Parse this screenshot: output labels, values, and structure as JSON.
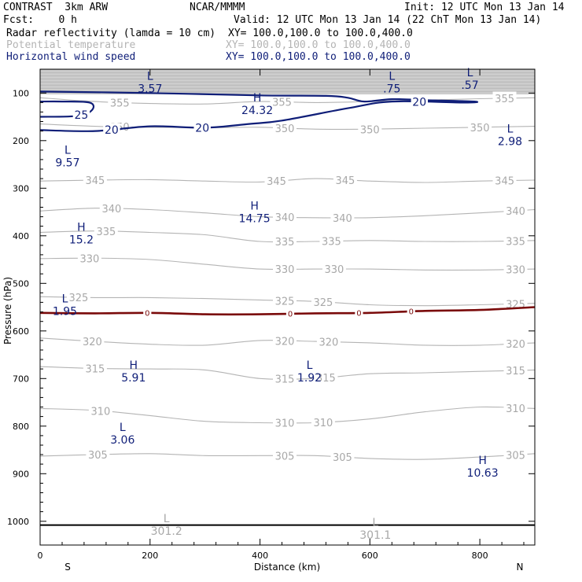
{
  "header": {
    "title": "CONTRAST  3km ARW",
    "org": "NCAR/MMMM",
    "init": "Init: 12 UTC Mon 13 Jan 14",
    "fcst": "Fcst:    0 h",
    "valid": "Valid: 12 UTC Mon 13 Jan 14 (22 ChT Mon 13 Jan 14)",
    "fields": [
      {
        "name": "Radar reflectivity (lamda = 10 cm)",
        "xy": "XY= 100.0,100.0 to 100.0,400.0",
        "color": "#000000"
      },
      {
        "name": "Potential temperature",
        "xy": "XY= 100.0,100.0 to 100.0,400.0",
        "color": "#b4b4b4"
      },
      {
        "name": "Horizontal wind speed",
        "xy": "XY= 100.0,100.0 to 100.0,400.0",
        "color": "#0f1e78"
      }
    ]
  },
  "chart_data": {
    "type": "line",
    "xlabel": "Distance (km)",
    "ylabel": "Pressure (hPa)",
    "xlim": [
      0,
      900
    ],
    "ylim": [
      1050,
      50
    ],
    "x_ticks": [
      0,
      200,
      400,
      600,
      800
    ],
    "y_ticks": [
      100,
      200,
      300,
      400,
      500,
      600,
      700,
      800,
      900,
      1000
    ],
    "x_end_labels": {
      "left": "S",
      "right": "N"
    },
    "series": [
      {
        "name": "Potential temperature",
        "color": "#b4b4b4",
        "contours": [
          {
            "label": "355",
            "points": [
              [
                0,
                110
              ],
              [
                100,
                118
              ],
              [
                200,
                122
              ],
              [
                300,
                123
              ],
              [
                400,
                118
              ],
              [
                500,
                120
              ],
              [
                600,
                118
              ],
              [
                700,
                115
              ],
              [
                800,
                112
              ],
              [
                900,
                110
              ]
            ],
            "label_x": [
              145,
              440,
              845
            ]
          },
          {
            "label": "350",
            "points": [
              [
                0,
                165
              ],
              [
                100,
                170
              ],
              [
                200,
                172
              ],
              [
                300,
                173
              ],
              [
                400,
                172
              ],
              [
                500,
                176
              ],
              [
                600,
                176
              ],
              [
                700,
                174
              ],
              [
                800,
                172
              ],
              [
                900,
                170
              ]
            ],
            "label_x": [
              145,
              445,
              600,
              800
            ]
          },
          {
            "label": "345",
            "points": [
              [
                0,
                285
              ],
              [
                100,
                283
              ],
              [
                200,
                282
              ],
              [
                300,
                285
              ],
              [
                400,
                287
              ],
              [
                500,
                280
              ],
              [
                600,
                285
              ],
              [
                700,
                288
              ],
              [
                800,
                285
              ],
              [
                900,
                283
              ]
            ],
            "label_x": [
              100,
              430,
              555,
              845
            ]
          },
          {
            "label": "340",
            "points": [
              [
                0,
                348
              ],
              [
                100,
                342
              ],
              [
                200,
                345
              ],
              [
                300,
                352
              ],
              [
                400,
                360
              ],
              [
                500,
                362
              ],
              [
                600,
                362
              ],
              [
                700,
                358
              ],
              [
                800,
                352
              ],
              [
                900,
                345
              ]
            ],
            "label_x": [
              130,
              445,
              550,
              865
            ]
          },
          {
            "label": "335",
            "points": [
              [
                0,
                393
              ],
              [
                100,
                390
              ],
              [
                200,
                393
              ],
              [
                300,
                398
              ],
              [
                400,
                412
              ],
              [
                500,
                412
              ],
              [
                600,
                410
              ],
              [
                700,
                412
              ],
              [
                800,
                412
              ],
              [
                900,
                410
              ]
            ],
            "label_x": [
              120,
              445,
              530,
              865
            ]
          },
          {
            "label": "330",
            "points": [
              [
                0,
                448
              ],
              [
                100,
                447
              ],
              [
                200,
                450
              ],
              [
                300,
                460
              ],
              [
                400,
                470
              ],
              [
                500,
                470
              ],
              [
                600,
                470
              ],
              [
                700,
                472
              ],
              [
                800,
                472
              ],
              [
                900,
                470
              ]
            ],
            "label_x": [
              90,
              445,
              535,
              865
            ]
          },
          {
            "label": "325",
            "points": [
              [
                0,
                528
              ],
              [
                100,
                530
              ],
              [
                200,
                530
              ],
              [
                300,
                532
              ],
              [
                400,
                535
              ],
              [
                500,
                538
              ],
              [
                600,
                545
              ],
              [
                700,
                547
              ],
              [
                800,
                545
              ],
              [
                900,
                542
              ]
            ],
            "label_x": [
              70,
              445,
              515,
              865
            ]
          },
          {
            "label": "320",
            "points": [
              [
                0,
                615
              ],
              [
                100,
                622
              ],
              [
                200,
                628
              ],
              [
                300,
                630
              ],
              [
                400,
                620
              ],
              [
                500,
                622
              ],
              [
                600,
                625
              ],
              [
                700,
                630
              ],
              [
                800,
                630
              ],
              [
                900,
                625
              ]
            ],
            "label_x": [
              95,
              445,
              525,
              865
            ]
          },
          {
            "label": "315",
            "points": [
              [
                0,
                675
              ],
              [
                100,
                679
              ],
              [
                200,
                680
              ],
              [
                300,
                682
              ],
              [
                400,
                700
              ],
              [
                500,
                700
              ],
              [
                600,
                690
              ],
              [
                700,
                688
              ],
              [
                800,
                685
              ],
              [
                900,
                682
              ]
            ],
            "label_x": [
              100,
              445,
              520,
              865
            ]
          },
          {
            "label": "310",
            "points": [
              [
                0,
                763
              ],
              [
                100,
                767
              ],
              [
                200,
                778
              ],
              [
                300,
                790
              ],
              [
                400,
                793
              ],
              [
                500,
                793
              ],
              [
                600,
                785
              ],
              [
                700,
                770
              ],
              [
                800,
                760
              ],
              [
                900,
                763
              ]
            ],
            "label_x": [
              110,
              445,
              515,
              865
            ]
          },
          {
            "label": "305",
            "points": [
              [
                0,
                863
              ],
              [
                100,
                860
              ],
              [
                200,
                858
              ],
              [
                300,
                862
              ],
              [
                400,
                862
              ],
              [
                500,
                862
              ],
              [
                600,
                868
              ],
              [
                700,
                870
              ],
              [
                800,
                865
              ],
              [
                900,
                858
              ]
            ],
            "label_x": [
              105,
              445,
              550,
              865
            ]
          }
        ]
      },
      {
        "name": "Horizontal wind speed",
        "color": "#0f1e78",
        "contours": [
          {
            "label": "25",
            "points": [
              [
                0,
                150
              ],
              [
                70,
                148
              ],
              [
                95,
                135
              ],
              [
                90,
                120
              ],
              [
                40,
                118
              ],
              [
                0,
                118
              ]
            ],
            "label_x": [
              75
            ]
          },
          {
            "label": "20",
            "points": [
              [
                0,
                178
              ],
              [
                100,
                180
              ],
              [
                200,
                170
              ],
              [
                300,
                173
              ],
              [
                380,
                165
              ],
              [
                440,
                158
              ],
              [
                560,
                132
              ],
              [
                640,
                118
              ],
              [
                770,
                120
              ],
              [
                790,
                118
              ],
              [
                700,
                115
              ],
              [
                640,
                113
              ],
              [
                590,
                118
              ],
              [
                560,
                110
              ],
              [
                520,
                106
              ],
              [
                400,
                105
              ],
              [
                200,
                100
              ],
              [
                0,
                97
              ]
            ],
            "label_x": [
              130,
              295,
              690
            ]
          }
        ]
      },
      {
        "name": "Radar reflectivity (lamda = 10 cm)",
        "color": "#7a0a0a",
        "contours": [
          {
            "label": "0",
            "points": [
              [
                0,
                562
              ],
              [
                100,
                563
              ],
              [
                200,
                562
              ],
              [
                300,
                565
              ],
              [
                400,
                565
              ],
              [
                500,
                563
              ],
              [
                600,
                562
              ],
              [
                700,
                558
              ],
              [
                800,
                556
              ],
              [
                900,
                550
              ]
            ],
            "label_x": [
              195,
              455,
              580,
              675
            ]
          }
        ]
      }
    ],
    "extrema": [
      {
        "type": "L",
        "value": "3.57",
        "x": 200,
        "p": 72,
        "color": "#0f1e78"
      },
      {
        "type": "L",
        "value": ".75",
        "x": 640,
        "p": 72,
        "color": "#0f1e78"
      },
      {
        "type": "L",
        "value": ".57",
        "x": 782,
        "p": 65,
        "color": "#0f1e78"
      },
      {
        "type": "H",
        "value": "24.32",
        "x": 395,
        "p": 118,
        "color": "#0f1e78"
      },
      {
        "type": "L",
        "value": "2.98",
        "x": 855,
        "p": 183,
        "color": "#0f1e78"
      },
      {
        "type": "L",
        "value": "9.57",
        "x": 50,
        "p": 228,
        "color": "#0f1e78"
      },
      {
        "type": "H",
        "value": "14.75",
        "x": 390,
        "p": 345,
        "color": "#0f1e78"
      },
      {
        "type": "H",
        "value": "15.2",
        "x": 75,
        "p": 390,
        "color": "#0f1e78"
      },
      {
        "type": "L",
        "value": "1.95",
        "x": 45,
        "p": 540,
        "color": "#0f1e78"
      },
      {
        "type": "H",
        "value": "5.91",
        "x": 170,
        "p": 680,
        "color": "#0f1e78"
      },
      {
        "type": "L",
        "value": "1.92",
        "x": 490,
        "p": 680,
        "color": "#0f1e78"
      },
      {
        "type": "L",
        "value": "3.06",
        "x": 150,
        "p": 810,
        "color": "#0f1e78"
      },
      {
        "type": "H",
        "value": "10.63",
        "x": 805,
        "p": 880,
        "color": "#0f1e78"
      },
      {
        "type": "L",
        "value": "301.2",
        "x": 230,
        "p": 1002,
        "color": "#a8a8a8"
      },
      {
        "type": "L",
        "value": "301.1",
        "x": 610,
        "p": 1010,
        "color": "#a8a8a8"
      }
    ],
    "ground_pressure": 1008,
    "stratosphere_band": {
      "from": 50,
      "to": 103,
      "color": "#b4b4b4"
    }
  }
}
